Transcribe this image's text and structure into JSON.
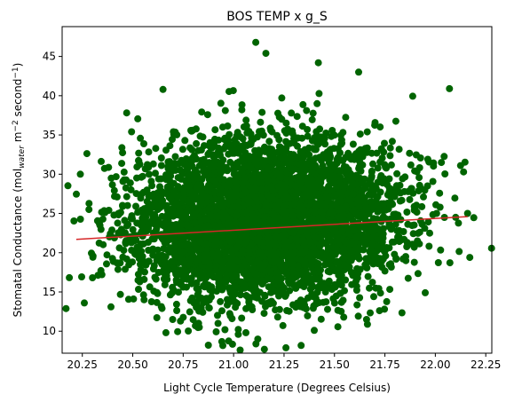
{
  "chart_data": {
    "type": "scatter",
    "title": "BOS TEMP x g_S",
    "xlabel": "Light Cycle Temperature (Degrees Celsius)",
    "ylabel": {
      "prefix": "Stomatal Conductance (mol",
      "subscript": "water",
      "middle": " m",
      "superscript1": "−2",
      "middle2": " second",
      "superscript2": "−1",
      "suffix": ")"
    },
    "xlim": [
      20.15,
      22.28
    ],
    "ylim": [
      7.2,
      48.8
    ],
    "xticks": [
      20.25,
      20.5,
      20.75,
      21.0,
      21.25,
      21.5,
      21.75,
      22.0,
      22.25
    ],
    "xtick_labels": [
      "20.25",
      "20.50",
      "20.75",
      "21.00",
      "21.25",
      "21.50",
      "21.75",
      "22.00",
      "22.25"
    ],
    "yticks": [
      10,
      15,
      20,
      25,
      30,
      35,
      40,
      45
    ],
    "ytick_labels": [
      "10",
      "15",
      "20",
      "25",
      "30",
      "35",
      "40",
      "45"
    ],
    "grid": false,
    "series": [
      {
        "kind": "points",
        "color": "#006400",
        "x_center": 21.15,
        "x_spread": 0.33,
        "y_center": 23.9,
        "y_spread": 5.1,
        "count": 4500,
        "seed": 7,
        "notable_points": [
          {
            "x": 21.11,
            "y": 46.8
          },
          {
            "x": 21.16,
            "y": 45.4
          },
          {
            "x": 21.42,
            "y": 44.2
          },
          {
            "x": 20.65,
            "y": 40.8
          },
          {
            "x": 22.07,
            "y": 40.9
          },
          {
            "x": 21.62,
            "y": 43.0
          },
          {
            "x": 20.26,
            "y": 13.6
          },
          {
            "x": 21.12,
            "y": 9.0
          },
          {
            "x": 21.4,
            "y": 10.1
          },
          {
            "x": 20.24,
            "y": 30.0
          },
          {
            "x": 22.14,
            "y": 30.3
          },
          {
            "x": 22.16,
            "y": 25.0
          },
          {
            "x": 20.83,
            "y": 10.5
          },
          {
            "x": 21.95,
            "y": 14.9
          }
        ]
      },
      {
        "kind": "trend-line",
        "color": "#d62728",
        "x": [
          20.22,
          22.16
        ],
        "y": [
          21.7,
          24.6
        ]
      }
    ]
  }
}
